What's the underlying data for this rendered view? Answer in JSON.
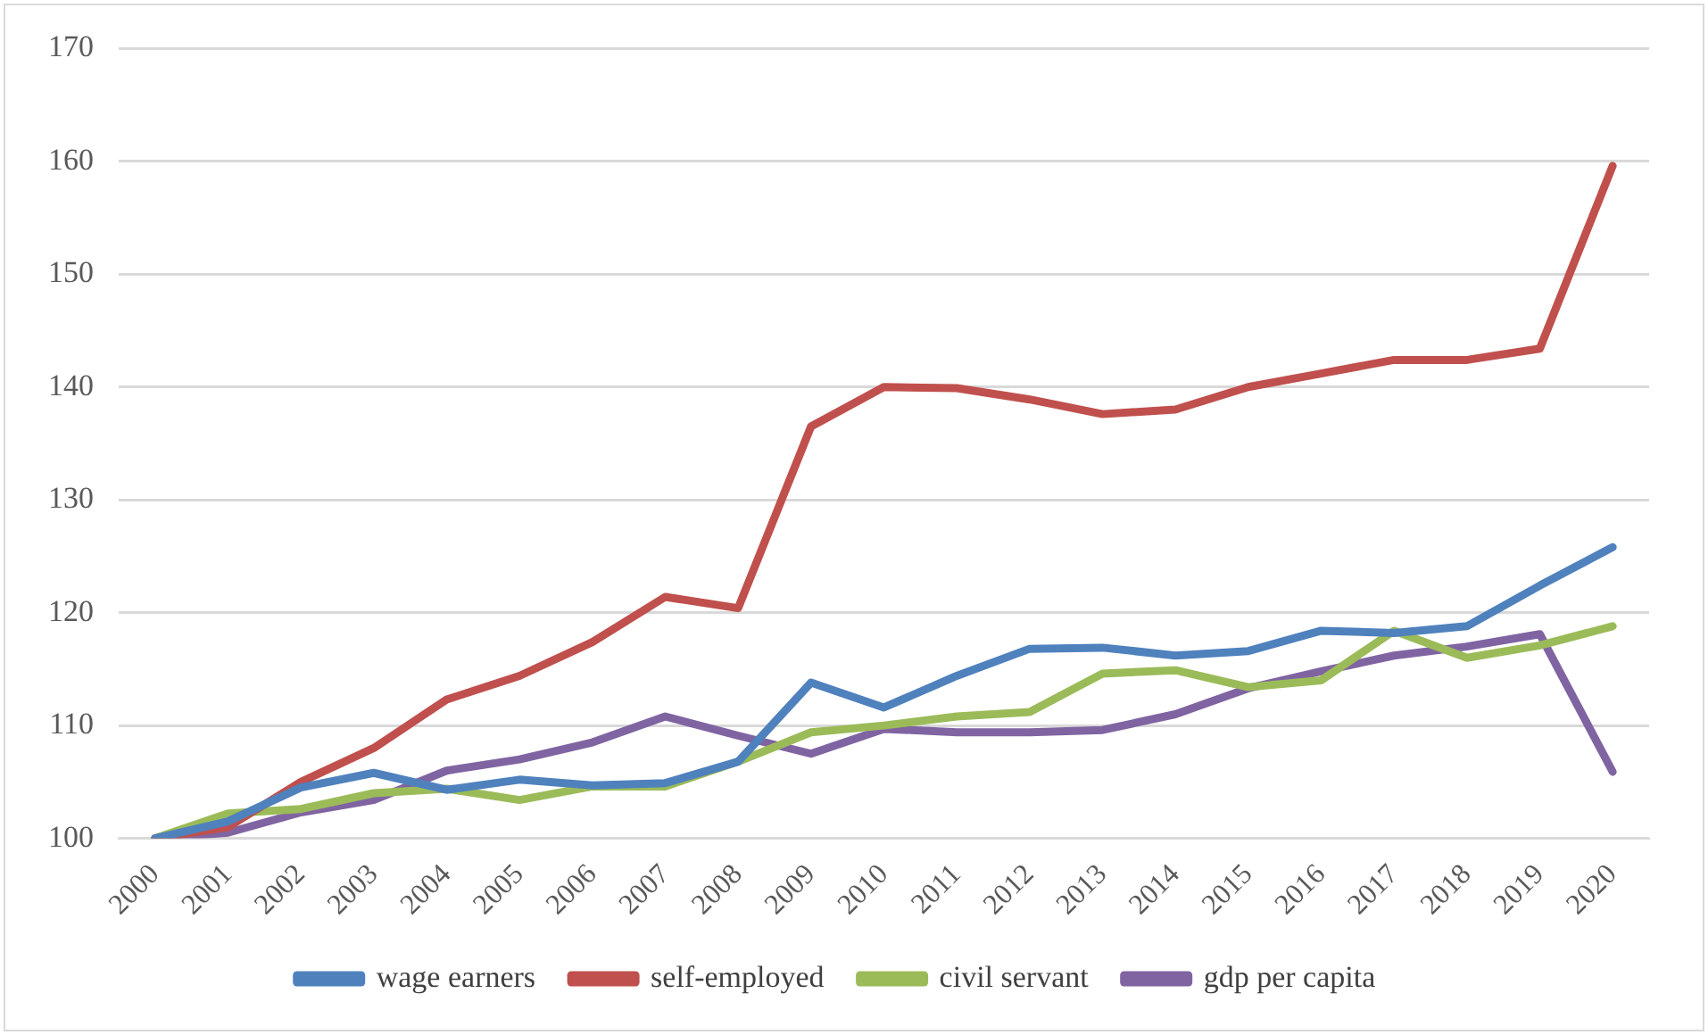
{
  "chart_data": {
    "type": "line",
    "categories": [
      "2000",
      "2001",
      "2002",
      "2003",
      "2004",
      "2005",
      "2006",
      "2007",
      "2008",
      "2009",
      "2010",
      "2011",
      "2012",
      "2013",
      "2014",
      "2015",
      "2016",
      "2017",
      "2018",
      "2019",
      "2020"
    ],
    "series": [
      {
        "name": "wage earners",
        "color": "#4f81bd",
        "values": [
          100,
          101.5,
          104.5,
          105.8,
          104.3,
          105.2,
          104.7,
          104.9,
          106.8,
          113.8,
          111.6,
          114.4,
          116.8,
          116.9,
          116.2,
          116.6,
          118.4,
          118.2,
          118.8,
          122.4,
          125.8
        ]
      },
      {
        "name": "self-employed",
        "color": "#c0504d",
        "values": [
          100,
          101,
          105,
          108,
          112.3,
          114.4,
          117.4,
          121.4,
          120.4,
          136.5,
          140,
          139.9,
          138.9,
          137.6,
          138,
          140,
          141.2,
          142.4,
          142.4,
          143.4,
          159.6
        ]
      },
      {
        "name": "civil servant",
        "color": "#9bbb59",
        "values": [
          100,
          102.2,
          102.6,
          104,
          104.4,
          103.4,
          104.6,
          104.6,
          106.8,
          109.4,
          110,
          110.8,
          111.2,
          114.6,
          114.9,
          113.4,
          114,
          118.4,
          116,
          117.1,
          118.8
        ]
      },
      {
        "name": "gdp per capita",
        "color": "#8064a2",
        "values": [
          100,
          100.5,
          102.3,
          103.4,
          106,
          107,
          108.5,
          110.8,
          109.1,
          107.5,
          109.7,
          109.4,
          109.4,
          109.6,
          111,
          113.3,
          114.8,
          116.2,
          117,
          118.1,
          105.9
        ]
      }
    ],
    "ylim": [
      100,
      170
    ],
    "yticks": [
      100,
      110,
      120,
      130,
      140,
      150,
      160,
      170
    ],
    "grid": "y",
    "legend": "bottom",
    "marker": "none",
    "line_style": "solid"
  }
}
